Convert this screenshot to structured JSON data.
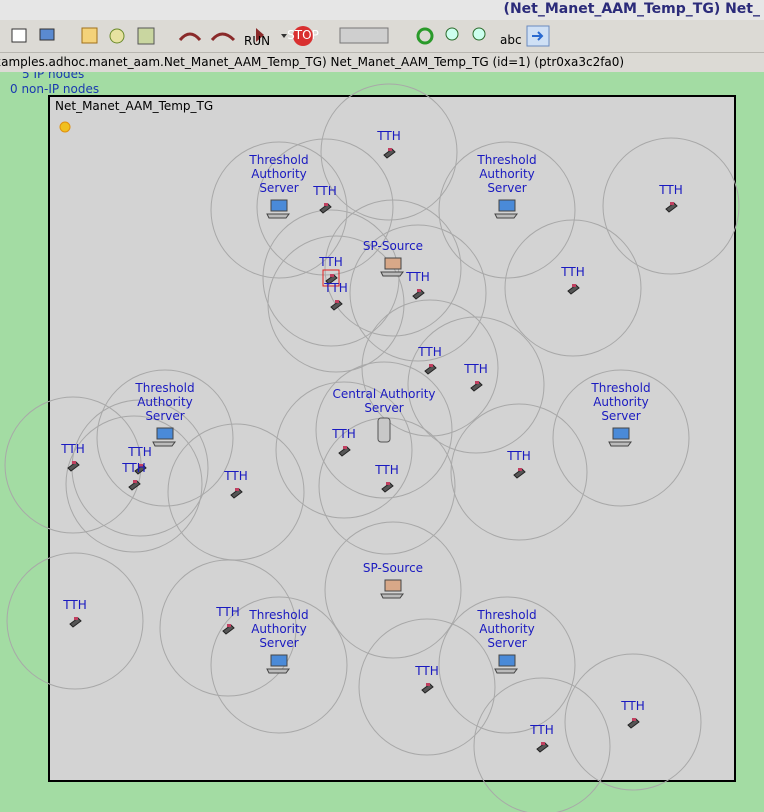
{
  "title_bar": "(Net_Manet_AAM_Temp_TG) Net_",
  "toolbar": {
    "run": "RUN",
    "stop": "STOP",
    "abc": "abc"
  },
  "breadcrumb": "xamples.adhoc.manet_aam.Net_Manet_AAM_Temp_TG) Net_Manet_AAM_Temp_TG  (id=1)  (ptr0xa3c2fa0)",
  "info": [
    "5 IP nodes",
    "0 non-IP nodes"
  ],
  "network": {
    "name": "Net_Manet_AAM_Temp_TG",
    "nodes": [
      {
        "label": [
          "TTH"
        ]
      },
      {
        "label": [
          "Threshold",
          "Authority",
          "Server"
        ]
      },
      {
        "label": [
          "TTH"
        ]
      },
      {
        "label": [
          "Threshold",
          "Authority",
          "Server"
        ]
      },
      {
        "label": [
          "TTH"
        ]
      },
      {
        "label": [
          "SP-Source"
        ]
      },
      {
        "label": [
          "TTH"
        ]
      },
      {
        "label": [
          "TTH"
        ]
      },
      {
        "label": [
          "TTH"
        ]
      },
      {
        "label": [
          "TTH"
        ]
      },
      {
        "label": [
          "TTH"
        ]
      },
      {
        "label": [
          "TTH"
        ]
      },
      {
        "label": [
          "Threshold",
          "Authority",
          "Server"
        ]
      },
      {
        "label": [
          "Central Authority",
          "Server"
        ]
      },
      {
        "label": [
          "Threshold",
          "Authority",
          "Server"
        ]
      },
      {
        "label": [
          "TTH"
        ]
      },
      {
        "label": [
          "TTH"
        ]
      },
      {
        "label": [
          "TTH"
        ]
      },
      {
        "label": [
          "TTH"
        ]
      },
      {
        "label": [
          "TTH"
        ]
      },
      {
        "label": [
          "TTH"
        ]
      },
      {
        "label": [
          "TTH"
        ]
      },
      {
        "label": [
          "SP-Source"
        ]
      },
      {
        "label": [
          "TTH"
        ]
      },
      {
        "label": [
          "TTH"
        ]
      },
      {
        "label": [
          "Threshold",
          "Authority",
          "Server"
        ]
      },
      {
        "label": [
          "Threshold",
          "Authority",
          "Server"
        ]
      },
      {
        "label": [
          "TTH"
        ]
      },
      {
        "label": [
          "TTH"
        ]
      },
      {
        "label": [
          "TTH"
        ]
      }
    ]
  }
}
